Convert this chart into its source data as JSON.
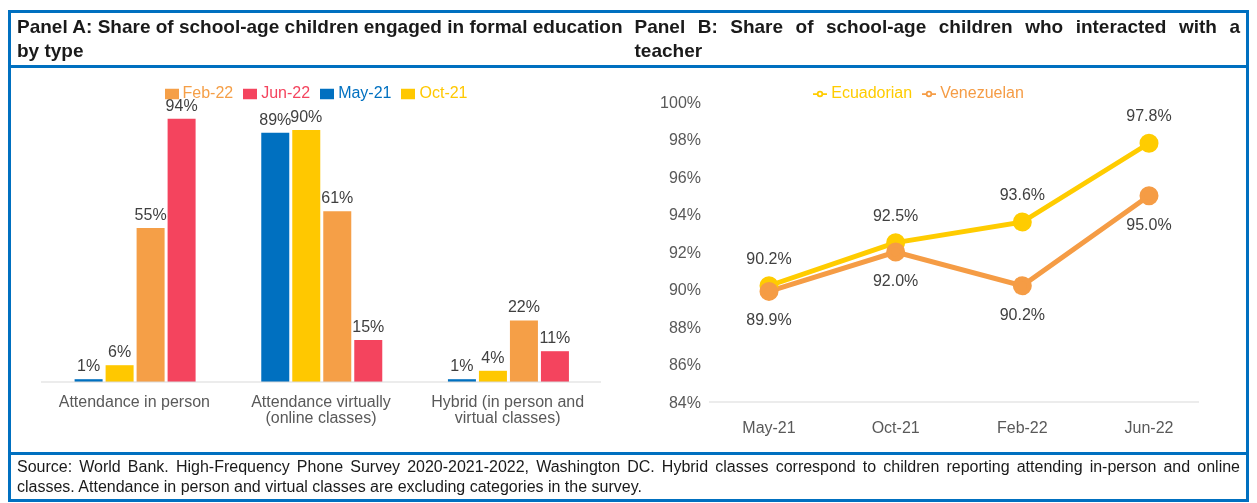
{
  "chart_data": [
    {
      "type": "bar",
      "title": "Panel A: Share of school-age children engaged in formal education by type",
      "categories": [
        "Attendance in person",
        "Attendance virtually (online classes)",
        "Hybrid (in person and virtual classes)"
      ],
      "legend": "top",
      "series": [
        {
          "name": "May-21",
          "color": "#0070c0",
          "values": [
            1,
            89,
            1
          ],
          "value_labels": [
            "1%",
            "89%",
            "1%"
          ]
        },
        {
          "name": "Oct-21",
          "color": "#ffc800",
          "values": [
            6,
            90,
            4
          ],
          "value_labels": [
            "6%",
            "90%",
            "4%"
          ]
        },
        {
          "name": "Feb-22",
          "color": "#f59f47",
          "values": [
            55,
            61,
            22
          ],
          "value_labels": [
            "55%",
            "61%",
            "22%"
          ]
        },
        {
          "name": "Jun-22",
          "color": "#f4445e",
          "values": [
            94,
            15,
            11
          ],
          "value_labels": [
            "94%",
            "15%",
            "11%"
          ]
        }
      ]
    },
    {
      "type": "line",
      "title": "Panel B: Share of school-age children who interacted with a teacher",
      "categories": [
        "May-21",
        "Oct-21",
        "Feb-22",
        "Jun-22"
      ],
      "ylim": [
        84,
        100
      ],
      "yticks": [
        {
          "value": 84,
          "label": "84%"
        },
        {
          "value": 86,
          "label": "86%"
        },
        {
          "value": 88,
          "label": "88%"
        },
        {
          "value": 90,
          "label": "90%"
        },
        {
          "value": 92,
          "label": "92%"
        },
        {
          "value": 94,
          "label": "94%"
        },
        {
          "value": 96,
          "label": "96%"
        },
        {
          "value": 98,
          "label": "98%"
        },
        {
          "value": 100,
          "label": "100%"
        }
      ],
      "legend": "top",
      "marker": "circle",
      "grid": false,
      "series": [
        {
          "name": "Ecuadorian",
          "color": "#ffcc00",
          "values": [
            90.2,
            92.5,
            93.6,
            97.8
          ],
          "value_labels": [
            "90.2%",
            "92.5%",
            "93.6%",
            "97.8%"
          ]
        },
        {
          "name": "Venezuelan",
          "color": "#f59c45",
          "values": [
            89.9,
            92.0,
            90.2,
            95.0
          ],
          "value_labels": [
            "89.9%",
            "92.0%",
            "90.2%",
            "95.0%"
          ]
        }
      ],
      "annotations": [
        "Source: World Bank. High-Frequency Phone Survey 2020-2021-2022, Washington DC. Hybrid classes correspond to children reporting attending in-person and online classes. Attendance in person and virtual classes are excluding categories in the survey."
      ]
    }
  ]
}
